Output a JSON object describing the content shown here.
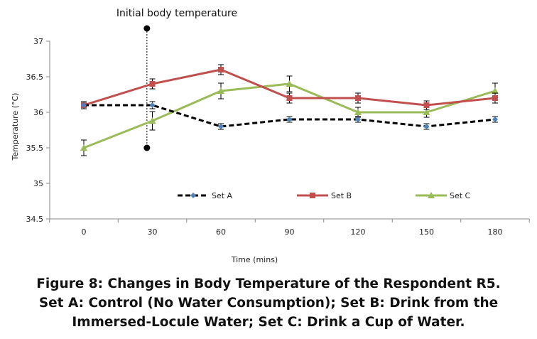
{
  "chart_data": {
    "type": "line",
    "x": [
      0,
      30,
      60,
      90,
      120,
      150,
      180
    ],
    "xlabel": "Time (mins)",
    "ylabel": "Temperature (°C)",
    "ylim": [
      34.5,
      37
    ],
    "yticks": [
      34.5,
      35,
      35.5,
      36,
      36.5,
      37
    ],
    "ytick_labels": [
      "34.5",
      "35",
      "35.5",
      "36",
      "36.5",
      "37"
    ],
    "xtick_labels": [
      "0",
      "30",
      "60",
      "90",
      "120",
      "150",
      "180"
    ],
    "grid": false,
    "legend_position": "bottom-inside",
    "series": [
      {
        "name": "Set A",
        "values": [
          36.1,
          36.1,
          35.8,
          35.9,
          35.9,
          35.8,
          35.9
        ],
        "errors": [
          0.05,
          0.05,
          0.04,
          0.04,
          0.04,
          0.04,
          0.04
        ],
        "color": "#000000",
        "style": "dashed",
        "marker": "diamond",
        "marker_color": "#4F81BD"
      },
      {
        "name": "Set B",
        "values": [
          36.1,
          36.4,
          36.6,
          36.2,
          36.2,
          36.1,
          36.2
        ],
        "errors": [
          0.05,
          0.07,
          0.07,
          0.07,
          0.07,
          0.06,
          0.07
        ],
        "color": "#C0504D",
        "style": "solid",
        "marker": "square",
        "marker_color": "#C0504D"
      },
      {
        "name": "Set C",
        "values": [
          35.5,
          35.88,
          36.3,
          36.4,
          36.0,
          36.0,
          36.3
        ],
        "errors": [
          0.11,
          0.13,
          0.11,
          0.11,
          0.07,
          0.07,
          0.11
        ],
        "color": "#9BBB59",
        "style": "solid",
        "marker": "triangle",
        "marker_color": "#9BBB59"
      }
    ],
    "annotation": {
      "text": "Initial body temperature",
      "x": 27,
      "y_range": [
        35.5,
        37.18
      ]
    },
    "title": "Figure 8: Changes in Body Temperature of the Respondent R5.",
    "caption_lines": [
      "Figure 8: Changes in Body Temperature of the Respondent R5.",
      "Set A: Control (No Water Consumption); Set B: Drink from the",
      "Immersed-Locule Water; Set C: Drink a Cup of Water."
    ]
  }
}
